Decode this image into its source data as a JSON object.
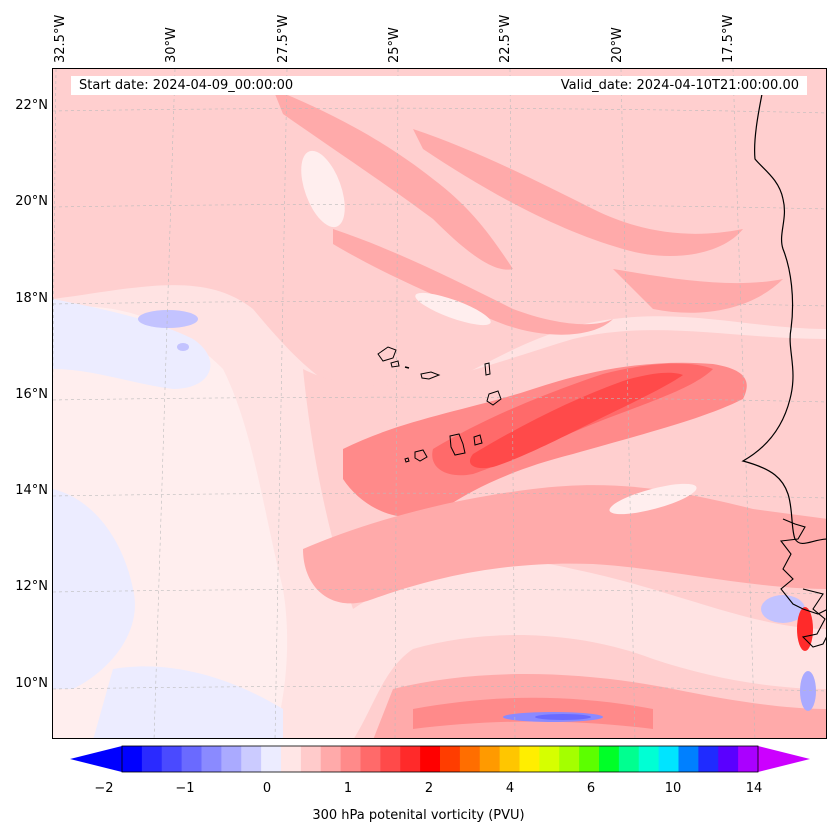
{
  "header": {
    "start_date": "Start date: 2024-04-09_00:00:00",
    "valid_date": "Valid_date: 2024-04-10T21:00:00.00"
  },
  "longitude_labels": [
    "32.5°W",
    "30°W",
    "27.5°W",
    "25°W",
    "22.5°W",
    "20°W",
    "17.5°W"
  ],
  "latitude_labels": [
    "22°N",
    "20°N",
    "18°N",
    "16°N",
    "14°N",
    "12°N",
    "10°N"
  ],
  "colorbar": {
    "title": "300 hPa potenital vorticity (PVU)",
    "tick_labels": [
      "−2",
      "−1",
      "0",
      "1",
      "2",
      "4",
      "6",
      "10",
      "14"
    ],
    "colors": [
      "#0000ff",
      "#2a2aff",
      "#4a4aff",
      "#6a6aff",
      "#8a8aff",
      "#aaaaff",
      "#cbcbff",
      "#ececff",
      "#ffe6e6",
      "#ffcbcb",
      "#ffaaaa",
      "#ff8a8a",
      "#ff6a6a",
      "#ff4a4a",
      "#ff2a2a",
      "#ff0000",
      "#ff3d00",
      "#ff6e00",
      "#ff9a00",
      "#ffc600",
      "#ffee00",
      "#d6ff00",
      "#a4ff00",
      "#5cff00",
      "#00ff28",
      "#00ff90",
      "#00ffd4",
      "#00e4ff",
      "#0080ff",
      "#1f2bff",
      "#5a00ff",
      "#aa00ff"
    ],
    "under_color": "#0000ff",
    "over_color": "#cc00ff"
  },
  "colors": {
    "background_pv": "#ffe3e3",
    "light_pink": "#ffcfcf",
    "mid_pink": "#ffaaaa",
    "strong_red": "#ff6363",
    "core_red": "#ff4a4a",
    "pale_blue": "#ececff",
    "light_blue": "#c3c3ff",
    "mid_blue": "#8a8aff",
    "coast": "#000000"
  }
}
